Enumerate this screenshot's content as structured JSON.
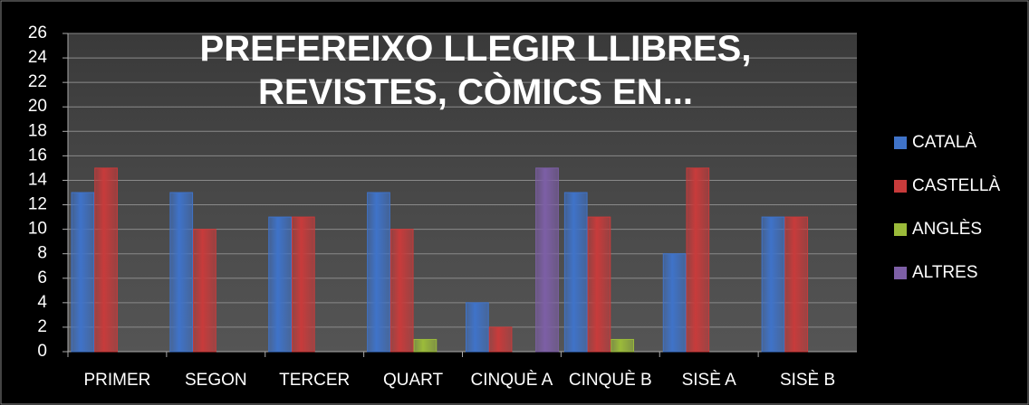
{
  "chart_data": {
    "type": "bar",
    "title": "PREFEREIXO LLEGIR LLIBRES, REVISTES, CÒMICS EN...",
    "categories": [
      "PRIMER",
      "SEGON",
      "TERCER",
      "QUART",
      "CINQUÈ A",
      "CINQUÈ B",
      "SISÈ A",
      "SISÈ B"
    ],
    "series": [
      {
        "name": "CATALÀ",
        "color": "#3f73c9",
        "values": [
          13,
          13,
          11,
          13,
          4,
          13,
          8,
          11
        ]
      },
      {
        "name": "CASTELLÀ",
        "color": "#c83b3b",
        "values": [
          15,
          10,
          11,
          10,
          2,
          11,
          15,
          11
        ]
      },
      {
        "name": "ANGLÈS",
        "color": "#9bbb3a",
        "values": [
          null,
          null,
          null,
          1,
          null,
          1,
          null,
          null
        ]
      },
      {
        "name": "ALTRES",
        "color": "#7d5fa6",
        "values": [
          null,
          null,
          null,
          null,
          15,
          null,
          null,
          null
        ]
      }
    ],
    "ylim": [
      0,
      26
    ],
    "yticks": [
      0,
      2,
      4,
      6,
      8,
      10,
      12,
      14,
      16,
      18,
      20,
      22,
      24,
      26
    ],
    "grid": true,
    "legend": "right"
  }
}
